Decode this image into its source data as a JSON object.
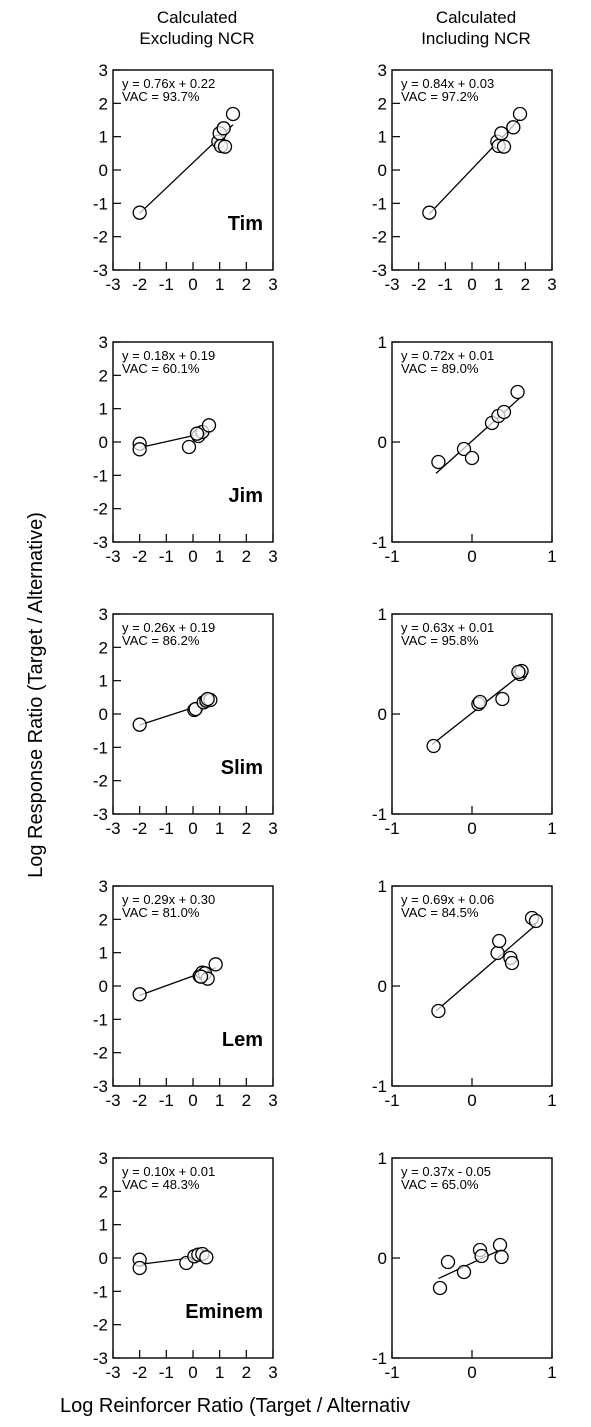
{
  "figure": {
    "column_titles": [
      [
        "Calculated",
        "Excluding NCR"
      ],
      [
        "Calculated",
        "Including NCR"
      ]
    ],
    "ylabel": "Log Response Ratio (Target / Alternative)",
    "xlabel": "Log Reinforcer Ratio (Target / Alternativ",
    "colors": {
      "ink": "#000000",
      "background": "#ffffff"
    }
  },
  "chart_data": [
    {
      "type": "scatter",
      "subject": "Tim",
      "column": "Calculated Excluding NCR",
      "equation": "y = 0.76x + 0.22",
      "vac": "VAC = 93.7%",
      "slope": 0.76,
      "intercept": 0.22,
      "fit_x": [
        -2.0,
        1.5
      ],
      "xlim": [
        -3,
        3
      ],
      "ylim": [
        -3,
        3
      ],
      "xticks": [
        -3,
        -2,
        -1,
        0,
        1,
        2,
        3
      ],
      "yticks": [
        -3,
        -2,
        -1,
        0,
        1,
        2,
        3
      ],
      "points": [
        [
          -2.0,
          -1.28
        ],
        [
          0.95,
          0.85
        ],
        [
          1.0,
          1.1
        ],
        [
          1.15,
          1.25
        ],
        [
          1.5,
          1.68
        ],
        [
          1.05,
          0.72
        ],
        [
          1.2,
          0.7
        ]
      ]
    },
    {
      "type": "scatter",
      "subject": "",
      "column": "Calculated Including NCR",
      "equation": "y = 0.84x + 0.03",
      "vac": "VAC = 97.2%",
      "slope": 0.84,
      "intercept": 0.03,
      "fit_x": [
        -1.6,
        1.8
      ],
      "xlim": [
        -3,
        3
      ],
      "ylim": [
        -3,
        3
      ],
      "xticks": [
        -3,
        -2,
        -1,
        0,
        1,
        2,
        3
      ],
      "yticks": [
        -3,
        -2,
        -1,
        0,
        1,
        2,
        3
      ],
      "points": [
        [
          -1.6,
          -1.28
        ],
        [
          0.95,
          0.85
        ],
        [
          1.1,
          1.1
        ],
        [
          1.55,
          1.28
        ],
        [
          1.8,
          1.68
        ],
        [
          1.0,
          0.72
        ],
        [
          1.2,
          0.7
        ]
      ]
    },
    {
      "type": "scatter",
      "subject": "Jim",
      "column": "Calculated Excluding NCR",
      "equation": "y = 0.18x + 0.19",
      "vac": "VAC = 60.1%",
      "slope": 0.18,
      "intercept": 0.19,
      "fit_x": [
        -2.0,
        0.7
      ],
      "xlim": [
        -3,
        3
      ],
      "ylim": [
        -3,
        3
      ],
      "xticks": [
        -3,
        -2,
        -1,
        0,
        1,
        2,
        3
      ],
      "yticks": [
        -3,
        -2,
        -1,
        0,
        1,
        2,
        3
      ],
      "points": [
        [
          -2.0,
          -0.05
        ],
        [
          -2.0,
          -0.22
        ],
        [
          -0.15,
          -0.15
        ],
        [
          0.2,
          0.18
        ],
        [
          0.35,
          0.3
        ],
        [
          0.6,
          0.5
        ],
        [
          0.15,
          0.25
        ]
      ]
    },
    {
      "type": "scatter",
      "subject": "",
      "column": "Calculated Including NCR",
      "equation": "y = 0.72x + 0.01",
      "vac": "VAC = 89.0%",
      "slope": 0.72,
      "intercept": 0.01,
      "fit_x": [
        -0.45,
        0.6
      ],
      "xlim": [
        -1,
        1
      ],
      "ylim": [
        -1,
        1
      ],
      "xticks": [
        -1,
        0,
        1
      ],
      "yticks": [
        -1,
        0,
        1
      ],
      "points": [
        [
          -0.42,
          -0.2
        ],
        [
          -0.1,
          -0.07
        ],
        [
          0.0,
          -0.16
        ],
        [
          0.25,
          0.19
        ],
        [
          0.33,
          0.26
        ],
        [
          0.4,
          0.3
        ],
        [
          0.57,
          0.5
        ]
      ]
    },
    {
      "type": "scatter",
      "subject": "Slim",
      "column": "Calculated Excluding NCR",
      "equation": "y = 0.26x + 0.19",
      "vac": "VAC = 86.2%",
      "slope": 0.26,
      "intercept": 0.19,
      "fit_x": [
        -2.0,
        0.7
      ],
      "xlim": [
        -3,
        3
      ],
      "ylim": [
        -3,
        3
      ],
      "xticks": [
        -3,
        -2,
        -1,
        0,
        1,
        2,
        3
      ],
      "yticks": [
        -3,
        -2,
        -1,
        0,
        1,
        2,
        3
      ],
      "points": [
        [
          -2.0,
          -0.32
        ],
        [
          0.05,
          0.12
        ],
        [
          0.1,
          0.15
        ],
        [
          0.4,
          0.35
        ],
        [
          0.5,
          0.4
        ],
        [
          0.65,
          0.42
        ],
        [
          0.55,
          0.45
        ]
      ]
    },
    {
      "type": "scatter",
      "subject": "",
      "column": "Calculated Including NCR",
      "equation": "y = 0.63x + 0.01",
      "vac": "VAC = 95.8%",
      "slope": 0.63,
      "intercept": 0.01,
      "fit_x": [
        -0.5,
        0.62
      ],
      "xlim": [
        -1,
        1
      ],
      "ylim": [
        -1,
        1
      ],
      "xticks": [
        -1,
        0,
        1
      ],
      "yticks": [
        -1,
        0,
        1
      ],
      "points": [
        [
          -0.48,
          -0.32
        ],
        [
          0.08,
          0.1
        ],
        [
          0.1,
          0.12
        ],
        [
          0.38,
          0.15
        ],
        [
          0.6,
          0.4
        ],
        [
          0.62,
          0.43
        ],
        [
          0.58,
          0.42
        ]
      ]
    },
    {
      "type": "scatter",
      "subject": "Lem",
      "column": "Calculated Excluding NCR",
      "equation": "y = 0.29x + 0.30",
      "vac": "VAC = 81.0%",
      "slope": 0.29,
      "intercept": 0.3,
      "fit_x": [
        -2.0,
        0.85
      ],
      "xlim": [
        -3,
        3
      ],
      "ylim": [
        -3,
        3
      ],
      "xticks": [
        -3,
        -2,
        -1,
        0,
        1,
        2,
        3
      ],
      "yticks": [
        -3,
        -2,
        -1,
        0,
        1,
        2,
        3
      ],
      "points": [
        [
          -2.0,
          -0.25
        ],
        [
          0.25,
          0.3
        ],
        [
          0.35,
          0.4
        ],
        [
          0.45,
          0.38
        ],
        [
          0.55,
          0.22
        ],
        [
          0.85,
          0.65
        ],
        [
          0.3,
          0.28
        ]
      ]
    },
    {
      "type": "scatter",
      "subject": "",
      "column": "Calculated Including NCR",
      "equation": "y = 0.69x + 0.06",
      "vac": "VAC = 84.5%",
      "slope": 0.69,
      "intercept": 0.06,
      "fit_x": [
        -0.45,
        0.8
      ],
      "xlim": [
        -1,
        1
      ],
      "ylim": [
        -1,
        1
      ],
      "xticks": [
        -1,
        0,
        1
      ],
      "yticks": [
        -1,
        0,
        1
      ],
      "points": [
        [
          -0.42,
          -0.25
        ],
        [
          0.32,
          0.33
        ],
        [
          0.34,
          0.45
        ],
        [
          0.48,
          0.28
        ],
        [
          0.5,
          0.23
        ],
        [
          0.75,
          0.68
        ],
        [
          0.8,
          0.65
        ]
      ]
    },
    {
      "type": "scatter",
      "subject": "Eminem",
      "column": "Calculated Excluding NCR",
      "equation": "y = 0.10x + 0.01",
      "vac": "VAC = 48.3%",
      "slope": 0.1,
      "intercept": 0.01,
      "fit_x": [
        -2.0,
        0.5
      ],
      "xlim": [
        -3,
        3
      ],
      "ylim": [
        -3,
        3
      ],
      "xticks": [
        -3,
        -2,
        -1,
        0,
        1,
        2,
        3
      ],
      "yticks": [
        -3,
        -2,
        -1,
        0,
        1,
        2,
        3
      ],
      "points": [
        [
          -2.0,
          -0.05
        ],
        [
          -2.0,
          -0.3
        ],
        [
          -0.25,
          -0.15
        ],
        [
          0.05,
          0.05
        ],
        [
          0.2,
          0.1
        ],
        [
          0.35,
          0.12
        ],
        [
          0.5,
          0.02
        ]
      ]
    },
    {
      "type": "scatter",
      "subject": "",
      "column": "Calculated Including NCR",
      "equation": "y = 0.37x - 0.05",
      "vac": "VAC = 65.0%",
      "slope": 0.37,
      "intercept": -0.05,
      "fit_x": [
        -0.42,
        0.38
      ],
      "xlim": [
        -1,
        1
      ],
      "ylim": [
        -1,
        1
      ],
      "xticks": [
        -1,
        0,
        1
      ],
      "yticks": [
        -1,
        0,
        1
      ],
      "points": [
        [
          -0.4,
          -0.3
        ],
        [
          -0.3,
          -0.04
        ],
        [
          -0.1,
          -0.14
        ],
        [
          0.1,
          0.08
        ],
        [
          0.12,
          0.02
        ],
        [
          0.35,
          0.13
        ],
        [
          0.37,
          0.01
        ]
      ]
    }
  ]
}
